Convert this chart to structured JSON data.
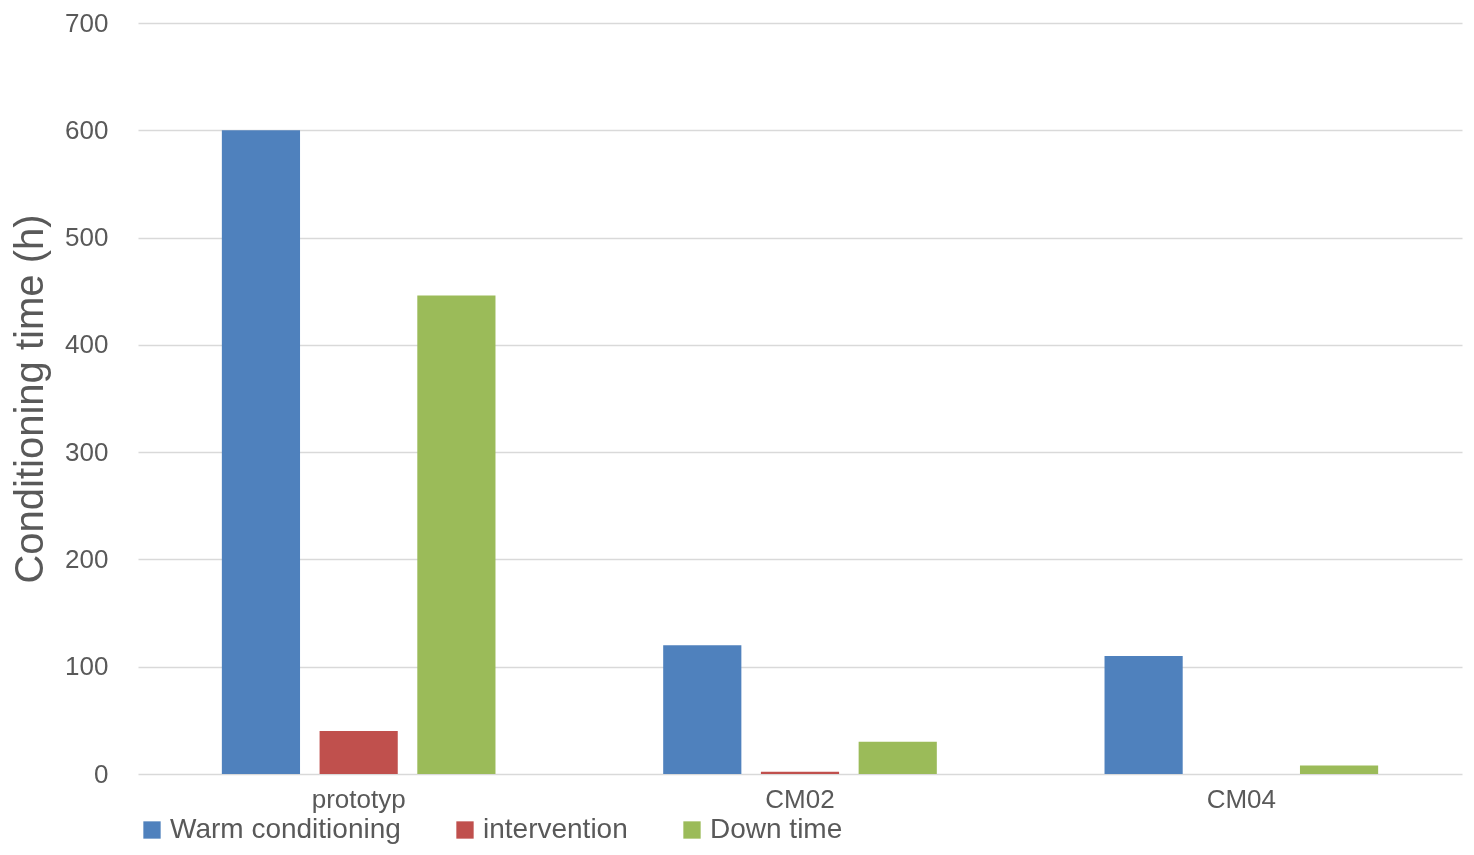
{
  "chart_data": {
    "type": "bar",
    "ylabel": "Conditioning time (h)",
    "categories": [
      "prototyp",
      "CM02",
      "CM04"
    ],
    "series": [
      {
        "name": "Warm conditioning",
        "color": "#4f81bd",
        "values": [
          600,
          120,
          110
        ]
      },
      {
        "name": "intervention",
        "color": "#c0504d",
        "values": [
          40,
          2,
          0
        ]
      },
      {
        "name": "Down time",
        "color": "#9bbb59",
        "values": [
          446,
          30,
          8
        ]
      }
    ],
    "ylim": [
      0,
      700
    ],
    "yticks": [
      0,
      100,
      200,
      300,
      400,
      500,
      600,
      700
    ],
    "grid": "y",
    "legend": "bottom"
  }
}
